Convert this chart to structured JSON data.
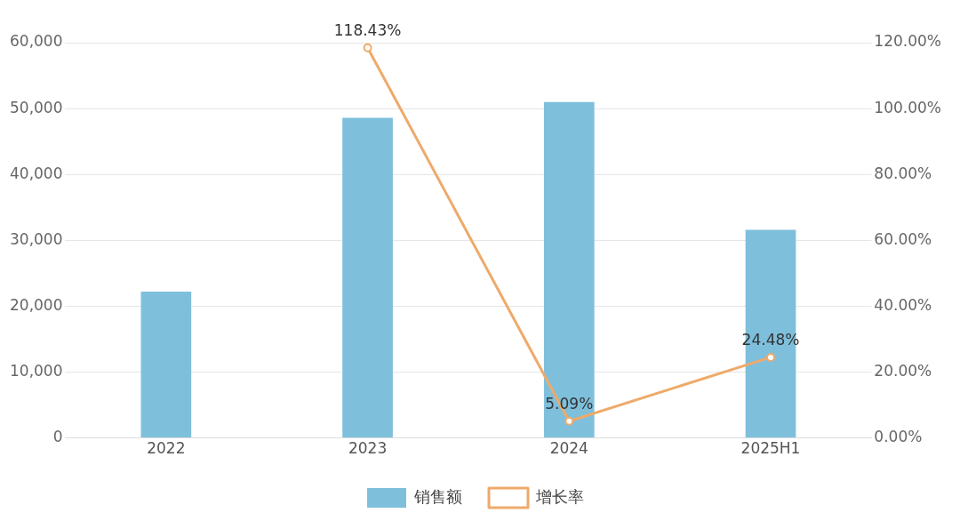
{
  "chart_data": {
    "type": "bar",
    "categories": [
      "2022",
      "2023",
      "2024",
      "2025H1"
    ],
    "series": [
      {
        "name": "销售额",
        "color": "#7ebfdc",
        "values": [
          22200,
          48600,
          51000,
          31600
        ]
      },
      {
        "name": "增长率",
        "type": "line",
        "axis": "y2",
        "color": "#eeaa6a",
        "marker": "circle",
        "values": [
          null,
          118.43,
          5.09,
          24.48
        ],
        "value_labels": [
          null,
          "118.43%",
          "5.09%",
          "24.48%"
        ]
      }
    ],
    "ylim": [
      0,
      60000
    ],
    "yticks": [
      {
        "value": 0,
        "label": "0"
      },
      {
        "value": 10000,
        "label": "10,000"
      },
      {
        "value": 20000,
        "label": "20,000"
      },
      {
        "value": 30000,
        "label": "30,000"
      },
      {
        "value": 40000,
        "label": "40,000"
      },
      {
        "value": 50000,
        "label": "50,000"
      },
      {
        "value": 60000,
        "label": "60,000"
      }
    ],
    "y2lim": [
      0,
      120
    ],
    "y2ticks": [
      {
        "value": 0,
        "label": "0.00%"
      },
      {
        "value": 20,
        "label": "20.00%"
      },
      {
        "value": 40,
        "label": "40.00%"
      },
      {
        "value": 60,
        "label": "60.00%"
      },
      {
        "value": 80,
        "label": "80.00%"
      },
      {
        "value": 100,
        "label": "100.00%"
      },
      {
        "value": 120,
        "label": "120.00%"
      }
    ],
    "grid": "y",
    "legend": "bottom"
  }
}
